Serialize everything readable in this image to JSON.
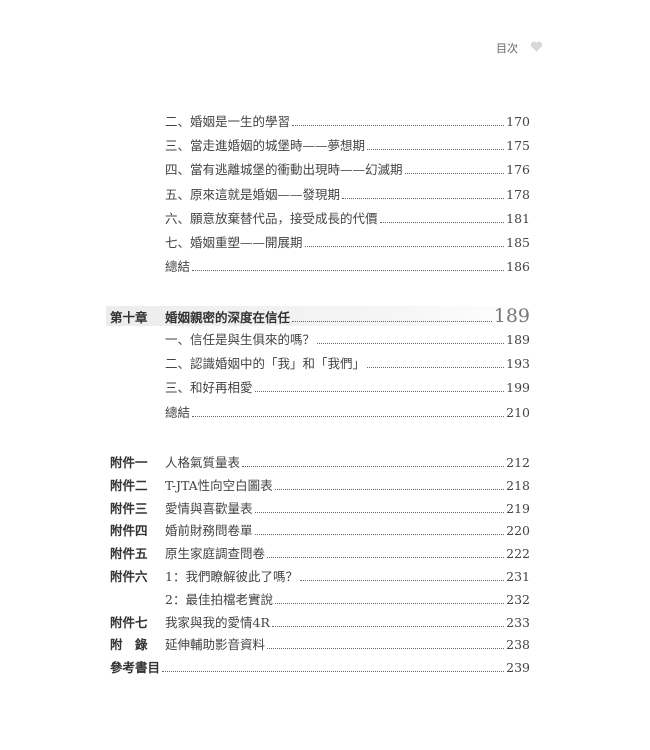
{
  "header": {
    "title": "目次",
    "icon": "heart-icon",
    "icon_color": "#d8d8d8"
  },
  "section1": [
    {
      "text": "二、婚姻是一生的學習",
      "page": "170"
    },
    {
      "text": "三、當走進婚姻的城堡時——夢想期",
      "page": "175"
    },
    {
      "text": "四、當有逃離城堡的衝動出現時——幻滅期",
      "page": "176"
    },
    {
      "text": "五、原來這就是婚姻——發現期",
      "page": "178"
    },
    {
      "text": "六、願意放棄替代品，接受成長的代價",
      "page": "181"
    },
    {
      "text": "七、婚姻重塑——開展期",
      "page": "185"
    },
    {
      "text": "總結",
      "page": "186"
    }
  ],
  "chapter10": {
    "label": "第十章",
    "text": "婚姻親密的深度在信任",
    "page": "189",
    "items": [
      {
        "text": "一、信任是與生俱來的嗎？",
        "page": "189"
      },
      {
        "text": "二、認識婚姻中的「我」和「我們」",
        "page": "193"
      },
      {
        "text": "三、和好再相愛",
        "page": "199"
      },
      {
        "text": "總結",
        "page": "210"
      }
    ]
  },
  "appendices": [
    {
      "label": "附件一",
      "text": "人格氣質量表",
      "page": "212"
    },
    {
      "label": "附件二",
      "text": "T-JTA性向空白圖表",
      "page": "218"
    },
    {
      "label": "附件三",
      "text": "愛情與喜歡量表",
      "page": "219"
    },
    {
      "label": "附件四",
      "text": "婚前財務問卷單",
      "page": "220"
    },
    {
      "label": "附件五",
      "text": "原生家庭調查問卷",
      "page": "222"
    },
    {
      "label": "附件六",
      "text": "1：我們瞭解彼此了嗎？",
      "page": "231"
    },
    {
      "label": "",
      "text": "2：最佳拍檔老實說",
      "page": "232"
    },
    {
      "label": "附件七",
      "text": "我家與我的愛情4R",
      "page": "233"
    },
    {
      "label": "附　錄",
      "text": "延伸輔助影音資料",
      "page": "238"
    },
    {
      "label": "參考書目",
      "text": "",
      "page": "239"
    }
  ]
}
